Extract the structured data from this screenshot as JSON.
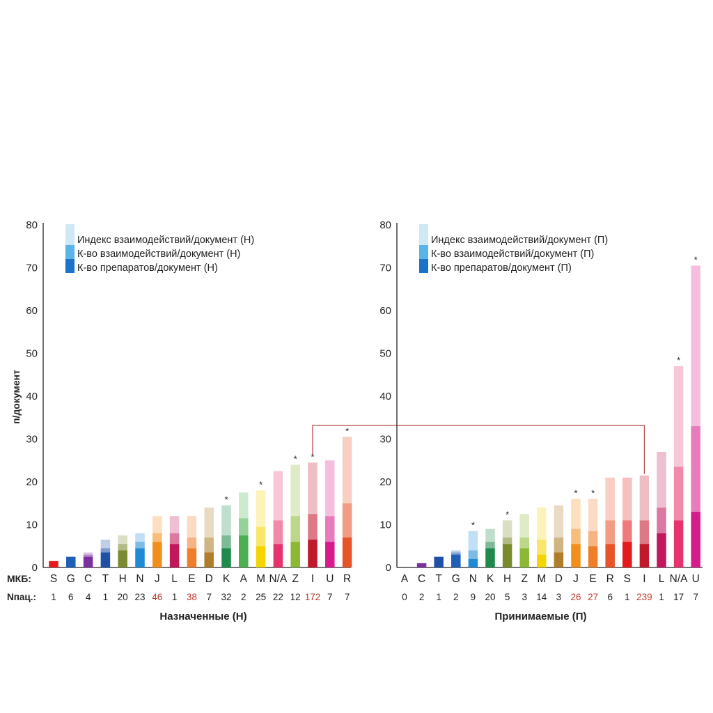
{
  "figure": {
    "y_axis_label": "п/документ",
    "row_label_icd": "МКБ:",
    "row_label_patients": "Nпац.:",
    "highlight_color": "#c0392b",
    "connector_color": "#b94a48"
  },
  "chart_data": [
    {
      "type": "bar",
      "stacked": true,
      "panel": "left",
      "title": "Назначенные (Н)",
      "ylabel": "п/документ",
      "ylim": [
        0,
        80
      ],
      "yticks": [
        0,
        10,
        20,
        30,
        40,
        50,
        60,
        70,
        80
      ],
      "legend_position": "top-left",
      "legend": [
        {
          "label": "Индекс взаимодействий/документ (Н)",
          "color": "#cfe8f6"
        },
        {
          "label": "К-во взаимодействий/документ (Н)",
          "color": "#5ab4e6"
        },
        {
          "label": "К-во препаратов/документ (Н)",
          "color": "#1a73c8"
        }
      ],
      "categories": [
        "S",
        "G",
        "C",
        "T",
        "H",
        "N",
        "J",
        "L",
        "E",
        "D",
        "K",
        "A",
        "M",
        "N/A",
        "Z",
        "I",
        "U",
        "R"
      ],
      "n_patients": [
        "1",
        "6",
        "4",
        "1",
        "20",
        "23",
        "46",
        "1",
        "38",
        "7",
        "32",
        "2",
        "25",
        "22",
        "12",
        "172",
        "7",
        "7"
      ],
      "highlighted_n": [
        "46",
        "38",
        "172"
      ],
      "colors": [
        "#e41a1c",
        "#1f5fb4",
        "#7b2fa0",
        "#1f4fa8",
        "#7a8a2e",
        "#1f8ad6",
        "#f28e1c",
        "#c2185b",
        "#ef7d2a",
        "#b07d2a",
        "#1f8a4c",
        "#4caf50",
        "#f5d400",
        "#e6336d",
        "#8cb836",
        "#c2182b",
        "#d81b8c",
        "#e8542a"
      ],
      "drugs_per_doc": [
        1.5,
        2.5,
        2.5,
        3.5,
        4,
        4.5,
        6,
        5.5,
        4.5,
        3.5,
        4.5,
        7.5,
        5,
        5.5,
        6,
        6.5,
        6,
        7
      ],
      "interactions_per_doc": [
        1.5,
        2.5,
        3,
        4.5,
        5.5,
        6,
        8,
        8,
        7,
        7,
        7.5,
        11.5,
        9.5,
        11,
        12,
        12.5,
        12,
        15
      ],
      "interaction_index_per_doc": [
        1.5,
        2.5,
        3.5,
        6.5,
        7.5,
        8,
        12,
        12,
        12,
        14,
        14.5,
        17.5,
        18,
        22.5,
        24,
        24.5,
        25,
        30.5
      ],
      "significant": [
        false,
        false,
        false,
        false,
        false,
        false,
        false,
        false,
        false,
        false,
        true,
        false,
        true,
        false,
        true,
        true,
        false,
        true
      ]
    },
    {
      "type": "bar",
      "stacked": true,
      "panel": "right",
      "title": "Принимаемые (П)",
      "ylim": [
        0,
        80
      ],
      "yticks": [
        0,
        10,
        20,
        30,
        40,
        50,
        60,
        70,
        80
      ],
      "legend_position": "top-left",
      "legend": [
        {
          "label": "Индекс взаимодействий/документ (П)",
          "color": "#cfe8f6"
        },
        {
          "label": "К-во взаимодействий/документ (П)",
          "color": "#5ab4e6"
        },
        {
          "label": "К-во препаратов/документ (П)",
          "color": "#1a73c8"
        }
      ],
      "categories": [
        "A",
        "C",
        "T",
        "G",
        "N",
        "K",
        "H",
        "Z",
        "M",
        "D",
        "J",
        "E",
        "R",
        "S",
        "I",
        "L",
        "N/A",
        "U"
      ],
      "n_patients": [
        "0",
        "2",
        "1",
        "2",
        "9",
        "20",
        "5",
        "3",
        "14",
        "3",
        "26",
        "27",
        "6",
        "1",
        "239",
        "1",
        "17",
        "7"
      ],
      "highlighted_n": [
        "26",
        "27",
        "239"
      ],
      "colors": [
        "#cccccc",
        "#7b2fa0",
        "#1f4fa8",
        "#1f5fb4",
        "#1f8ad6",
        "#1f8a4c",
        "#7a8a2e",
        "#8cb836",
        "#f5d400",
        "#b07d2a",
        "#f28e1c",
        "#ef7d2a",
        "#e8542a",
        "#e41a1c",
        "#c2182b",
        "#c2185b",
        "#e6336d",
        "#d81b8c"
      ],
      "drugs_per_doc": [
        0,
        1,
        2.5,
        3,
        2,
        4.5,
        5.5,
        4.5,
        3,
        3.5,
        5.5,
        5,
        5.5,
        6,
        5.5,
        8,
        11,
        13
      ],
      "interactions_per_doc": [
        0,
        1,
        2.5,
        3.5,
        4,
        6,
        7,
        7,
        6.5,
        7,
        9,
        8.5,
        11,
        11,
        11,
        14,
        23.5,
        33
      ],
      "interaction_index_per_doc": [
        0,
        1,
        2.5,
        4,
        8.5,
        9,
        11,
        12.5,
        14,
        14.5,
        16,
        16,
        21,
        21,
        21.5,
        27,
        47,
        70.5
      ],
      "significant": [
        false,
        false,
        false,
        false,
        true,
        false,
        true,
        false,
        false,
        false,
        true,
        true,
        false,
        false,
        false,
        false,
        true,
        true
      ]
    }
  ]
}
